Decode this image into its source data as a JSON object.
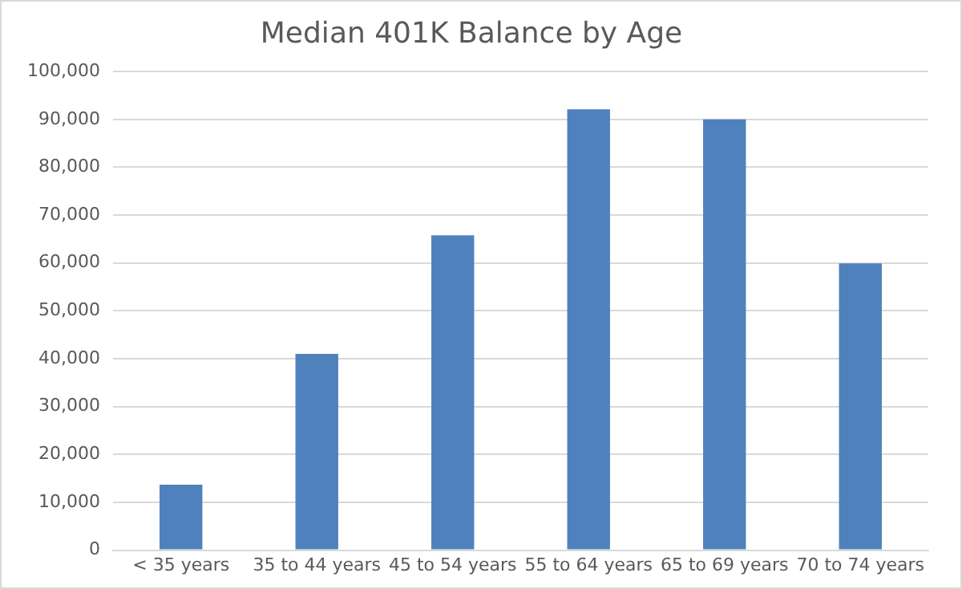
{
  "chart_data": {
    "type": "bar",
    "title": "Median 401K Balance by Age",
    "categories": [
      "< 35 years",
      "35 to 44 years",
      "45 to 54 years",
      "55 to 64 years",
      "65 to 69 years",
      "70 to 74 years"
    ],
    "values": [
      13700,
      41000,
      65800,
      92100,
      90000,
      59900
    ],
    "color": "#4f81bd",
    "ylim": [
      0,
      100000
    ],
    "yticks": [
      {
        "value": 0,
        "label": "0"
      },
      {
        "value": 10000,
        "label": "10,000"
      },
      {
        "value": 20000,
        "label": "20,000"
      },
      {
        "value": 30000,
        "label": "30,000"
      },
      {
        "value": 40000,
        "label": "40,000"
      },
      {
        "value": 50000,
        "label": "50,000"
      },
      {
        "value": 60000,
        "label": "60,000"
      },
      {
        "value": 70000,
        "label": "70,000"
      },
      {
        "value": 80000,
        "label": "80,000"
      },
      {
        "value": 90000,
        "label": "90,000"
      },
      {
        "value": 100000,
        "label": "100,000"
      }
    ],
    "grid": "y",
    "legend": false
  }
}
